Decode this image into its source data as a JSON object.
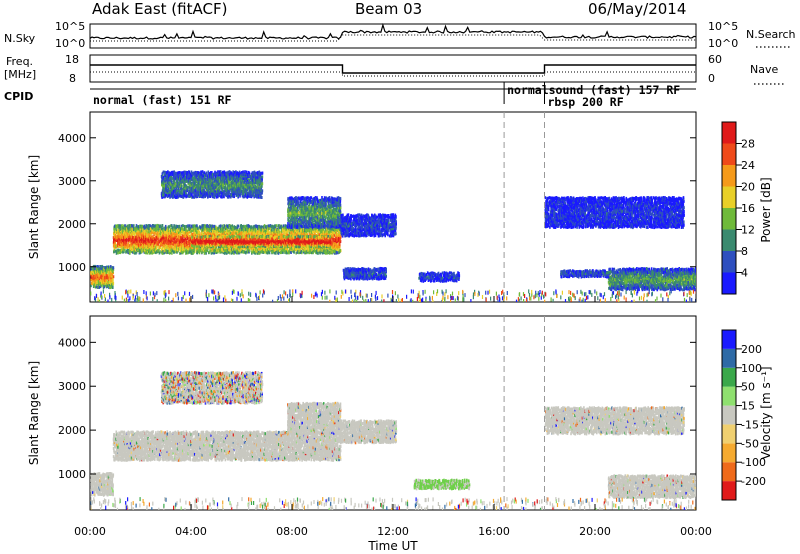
{
  "header": {
    "title": "Adak East (fitACF)",
    "beam": "Beam 03",
    "date": "06/May/2014"
  },
  "summary_panel": {
    "nsky_label": "N.Sky",
    "nsearch_label": "N.Search",
    "left_ticks": [
      "10^5",
      "10^0"
    ],
    "right_ticks": [
      "10^5",
      "10^0"
    ],
    "freq_label_line1": "Freq.",
    "freq_label_line2": "[MHz]",
    "freq_ticks": [
      "18",
      "8"
    ],
    "nave_label": "Nave",
    "nave_ticks": [
      "60",
      "0"
    ],
    "cpid_label": "CPID"
  },
  "cpid_segments": [
    {
      "label": "normal (fast) 151 RF",
      "start_hr": 0.0,
      "end_hr": 16.4
    },
    {
      "label": "normalsound (fast) 157 RF",
      "start_hr": 16.4,
      "end_hr": 18.0
    },
    {
      "label": "rbsp 200 RF",
      "start_hr": 18.0,
      "end_hr": 24.0
    }
  ],
  "chart_data": [
    {
      "type": "heatmap",
      "panel": "power",
      "xlabel": "",
      "ylabel": "Slant Range [km]",
      "xlim": [
        0,
        24
      ],
      "ylim": [
        180,
        4600
      ],
      "yticks": [
        1000,
        2000,
        3000,
        4000
      ],
      "colorbar_label": "Power [dB]",
      "colorbar_ticks": [
        "4",
        "8",
        "12",
        "16",
        "20",
        "24",
        "28"
      ],
      "colorbar_colors": [
        "#1a1aff",
        "#2e4fbf",
        "#3a8a6f",
        "#6fba3a",
        "#e8cf28",
        "#f59a1a",
        "#ef4a1a",
        "#e01a1a"
      ],
      "regions": [
        {
          "t0": 0.9,
          "t1": 9.9,
          "r0": 1300,
          "r1": 1950,
          "level": 0.8
        },
        {
          "t0": 4.0,
          "t1": 9.5,
          "r0": 1450,
          "r1": 1700,
          "level": 1.0
        },
        {
          "t0": 0.0,
          "t1": 0.9,
          "r0": 500,
          "r1": 1000,
          "level": 0.7
        },
        {
          "t0": 7.8,
          "t1": 9.9,
          "r0": 1900,
          "r1": 2600,
          "level": 0.35
        },
        {
          "t0": 2.8,
          "t1": 6.8,
          "r0": 2600,
          "r1": 3200,
          "level": 0.3
        },
        {
          "t0": 9.9,
          "t1": 12.1,
          "r0": 1700,
          "r1": 2200,
          "level": 0.15
        },
        {
          "t0": 10.0,
          "t1": 11.7,
          "r0": 700,
          "r1": 950,
          "level": 0.2
        },
        {
          "t0": 13.0,
          "t1": 14.6,
          "r0": 650,
          "r1": 850,
          "level": 0.15
        },
        {
          "t0": 18.0,
          "t1": 23.5,
          "r0": 1900,
          "r1": 2600,
          "level": 0.12
        },
        {
          "t0": 20.5,
          "t1": 24.0,
          "r0": 450,
          "r1": 950,
          "level": 0.35
        },
        {
          "t0": 18.6,
          "t1": 20.5,
          "r0": 750,
          "r1": 900,
          "level": 0.2
        }
      ]
    },
    {
      "type": "heatmap",
      "panel": "velocity",
      "xlabel": "Time UT",
      "ylabel": "Slant Range [km]",
      "xlim": [
        0,
        24
      ],
      "ylim": [
        180,
        4600
      ],
      "yticks": [
        1000,
        2000,
        3000,
        4000
      ],
      "xticks": [
        "00:00",
        "04:00",
        "08:00",
        "12:00",
        "16:00",
        "20:00",
        "00:00"
      ],
      "colorbar_label": "Velocity [m s⁻¹]",
      "colorbar_ticks": [
        "-200",
        "-100",
        "-50",
        "-15",
        "15",
        "50",
        "100",
        "200"
      ],
      "colorbar_colors": [
        "#e01a1a",
        "#ef6a1a",
        "#f5aa30",
        "#f0d070",
        "#c8c8c0",
        "#8fe06f",
        "#3aa84a",
        "#2e6aa6",
        "#1a1aff"
      ],
      "regions": [
        {
          "t0": 0.9,
          "t1": 9.9,
          "r0": 1300,
          "r1": 1950,
          "kind": "ground"
        },
        {
          "t0": 0.0,
          "t1": 0.9,
          "r0": 500,
          "r1": 1000,
          "kind": "ground"
        },
        {
          "t0": 2.8,
          "t1": 6.8,
          "r0": 2600,
          "r1": 3300,
          "kind": "mixed"
        },
        {
          "t0": 7.8,
          "t1": 9.9,
          "r0": 1900,
          "r1": 2600,
          "kind": "ground"
        },
        {
          "t0": 9.9,
          "t1": 12.1,
          "r0": 1700,
          "r1": 2200,
          "kind": "ground"
        },
        {
          "t0": 12.8,
          "t1": 15.0,
          "r0": 650,
          "r1": 850,
          "kind": "green"
        },
        {
          "t0": 18.0,
          "t1": 23.5,
          "r0": 1900,
          "r1": 2500,
          "kind": "ground"
        },
        {
          "t0": 20.5,
          "t1": 24.0,
          "r0": 450,
          "r1": 950,
          "kind": "ground"
        }
      ]
    }
  ]
}
